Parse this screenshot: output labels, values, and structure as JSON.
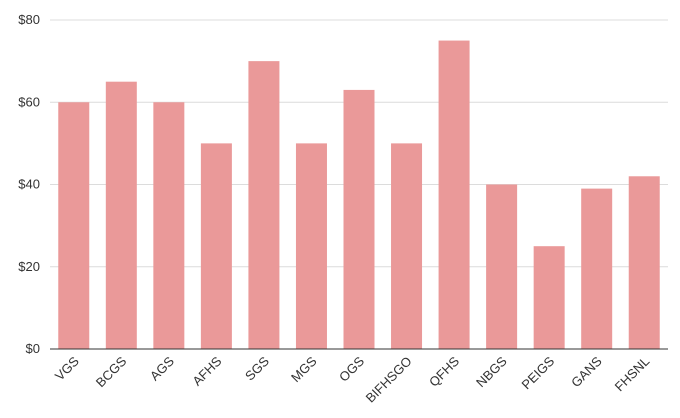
{
  "chart_data": {
    "type": "bar",
    "categories": [
      "VGS",
      "BCGS",
      "AGS",
      "AFHS",
      "SGS",
      "MGS",
      "OGS",
      "BIFHSGO",
      "QFHS",
      "NBGS",
      "PEIGS",
      "GANS",
      "FHSNL"
    ],
    "values": [
      60,
      65,
      60,
      50,
      70,
      50,
      63,
      50,
      75,
      40,
      25,
      39,
      42
    ],
    "color": "#ea9999",
    "ylim": [
      0,
      80
    ],
    "yticks": [
      {
        "value": 0,
        "label": "$0"
      },
      {
        "value": 20,
        "label": "$20"
      },
      {
        "value": 40,
        "label": "$40"
      },
      {
        "value": 60,
        "label": "$60"
      },
      {
        "value": 80,
        "label": "$80"
      }
    ],
    "grid": true
  }
}
